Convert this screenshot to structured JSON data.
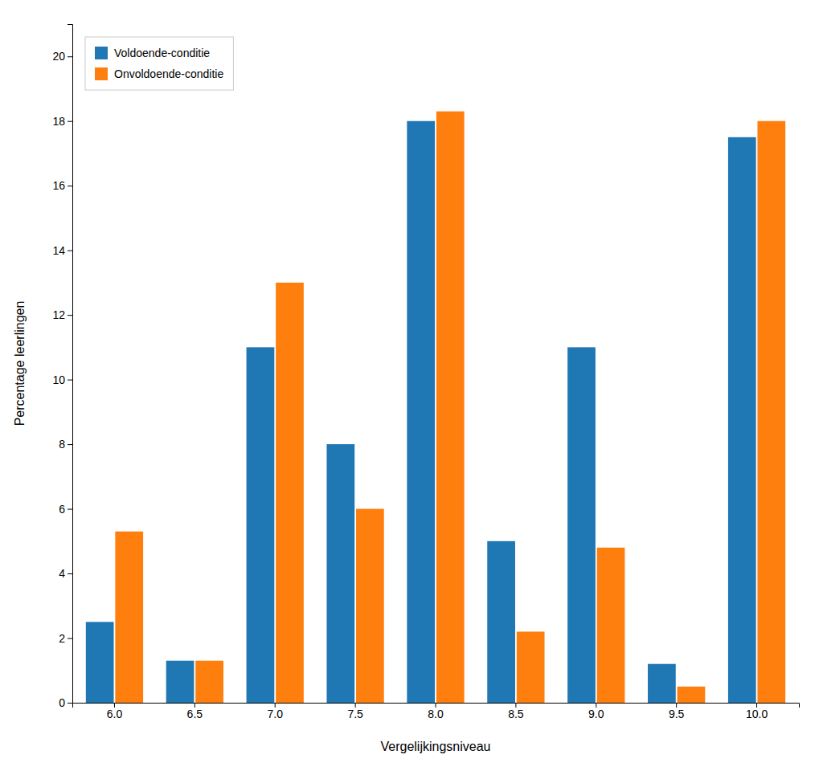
{
  "chart_data": {
    "type": "bar",
    "categories": [
      "6.0",
      "6.5",
      "7.0",
      "7.5",
      "8.0",
      "8.5",
      "9.0",
      "9.5",
      "10.0"
    ],
    "series": [
      {
        "name": "Voldoende-conditie",
        "values": [
          2.5,
          1.3,
          11.0,
          8.0,
          18.0,
          5.0,
          11.0,
          1.2,
          17.5
        ]
      },
      {
        "name": "Onvoldoende-conditie",
        "values": [
          5.3,
          1.3,
          13.0,
          6.0,
          18.3,
          2.2,
          4.8,
          0.5,
          18.0
        ]
      }
    ],
    "xlabel": "Vergelijkingsniveau",
    "ylabel": "Percentage leerlingen",
    "ylim": [
      0,
      21
    ],
    "yticks": [
      0,
      2,
      4,
      6,
      8,
      10,
      12,
      14,
      16,
      18,
      20
    ],
    "grid": false,
    "legend": "upper left"
  }
}
